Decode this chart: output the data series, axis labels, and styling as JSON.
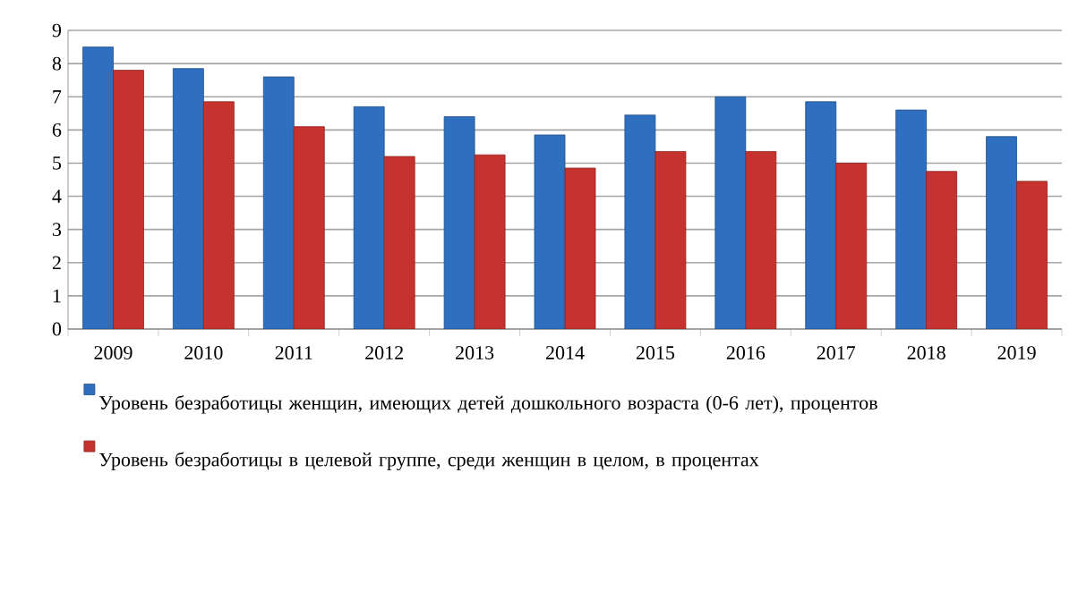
{
  "chart_data": {
    "type": "bar",
    "categories": [
      "2009",
      "2010",
      "2011",
      "2012",
      "2013",
      "2014",
      "2015",
      "2016",
      "2017",
      "2018",
      "2019"
    ],
    "series": [
      {
        "name": "Уровень безработицы женщин, имеющих детей дошкольного возраста (0-6 лет), процентов",
        "color": "#2f6fc0",
        "values": [
          8.5,
          7.85,
          7.6,
          6.7,
          6.4,
          5.85,
          6.45,
          7.0,
          6.85,
          6.6,
          5.8
        ]
      },
      {
        "name": "Уровень безработицы в целевой группе, среди женщин в целом, в процентах",
        "color": "#c6332e",
        "values": [
          7.8,
          6.85,
          6.1,
          5.2,
          5.25,
          4.85,
          5.35,
          5.35,
          5.0,
          4.75,
          4.45
        ]
      }
    ],
    "ylim": [
      0,
      9
    ],
    "yticks": [
      0,
      1,
      2,
      3,
      4,
      5,
      6,
      7,
      8,
      9
    ],
    "grid": "y",
    "legend": "bottom"
  }
}
